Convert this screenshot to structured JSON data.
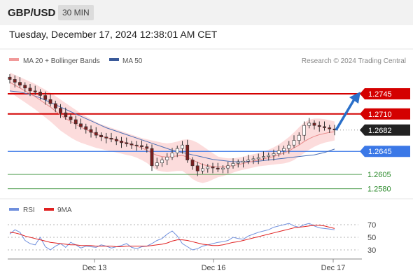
{
  "header": {
    "pair": "GBP/USD",
    "timeframe": "30 MIN",
    "datetime": "Tuesday, December 17, 2024 12:38:01 AM CET"
  },
  "legend": {
    "ma20": "MA 20 + Bollinger Bands",
    "ma50": "MA 50",
    "credit": "Research © 2024 Trading Central",
    "rsi": "RSI",
    "rsi_ma": "9MA"
  },
  "colors": {
    "candle_up": "#ffffff",
    "candle_down": "#7a1f1f",
    "ma20": "#e88a8a",
    "bands": "#fbd6d6",
    "ma50": "#4a6fb5",
    "resistance": "#d40000",
    "support": "#3b78e7",
    "target": "#2b8a2b",
    "current": "#222222",
    "arrow": "#2a6fc9",
    "rsi": "#6f8fdd",
    "rsi_ma": "#e02020"
  },
  "chart_data": [
    {
      "type": "candlestick",
      "title": "GBP/USD 30 MIN",
      "x_ticks": [
        "Dec 13",
        "Dec 16",
        "Dec 17"
      ],
      "ylim": [
        1.2565,
        1.279
      ],
      "levels": [
        {
          "value": 1.2745,
          "label": "1.2745",
          "kind": "resistance"
        },
        {
          "value": 1.271,
          "label": "1.2710",
          "kind": "resistance"
        },
        {
          "value": 1.2682,
          "label": "1.2682",
          "kind": "current"
        },
        {
          "value": 1.2645,
          "label": "1.2645",
          "kind": "support"
        },
        {
          "value": 1.2605,
          "label": "1.2605",
          "kind": "target"
        },
        {
          "value": 1.258,
          "label": "1.2580",
          "kind": "target"
        }
      ],
      "close": [
        1.277,
        1.2765,
        1.276,
        1.2755,
        1.275,
        1.2748,
        1.2742,
        1.2735,
        1.2728,
        1.272,
        1.2712,
        1.2705,
        1.27,
        1.2693,
        1.2688,
        1.2683,
        1.2678,
        1.2673,
        1.267,
        1.2668,
        1.2666,
        1.2663,
        1.266,
        1.2658,
        1.2656,
        1.2655,
        1.2653,
        1.265,
        1.262,
        1.2625,
        1.263,
        1.2635,
        1.2642,
        1.265,
        1.2656,
        1.263,
        1.262,
        1.2611,
        1.2615,
        1.2618,
        1.2616,
        1.2614,
        1.2616,
        1.262,
        1.2624,
        1.2626,
        1.2628,
        1.263,
        1.2632,
        1.2634,
        1.2636,
        1.2638,
        1.2641,
        1.2646,
        1.265,
        1.2656,
        1.2664,
        1.2673,
        1.269,
        1.2694,
        1.269,
        1.2688,
        1.2686,
        1.2684,
        1.2682
      ],
      "series": [
        {
          "name": "MA 20",
          "values": [
            1.2765,
            1.276,
            1.2755,
            1.275,
            1.2745,
            1.274,
            1.2734,
            1.2728,
            1.2722,
            1.2715,
            1.2708,
            1.2702,
            1.2697,
            1.2692,
            1.2687,
            1.2683,
            1.2679,
            1.2675,
            1.2672,
            1.2669,
            1.2667,
            1.2665,
            1.2662,
            1.266,
            1.2657,
            1.2654,
            1.2651,
            1.2647,
            1.2642,
            1.2638,
            1.2636,
            1.2635,
            1.2636,
            1.2637,
            1.2638,
            1.2635,
            1.263,
            1.2626,
            1.2622,
            1.262,
            1.2619,
            1.2618,
            1.2618,
            1.2619,
            1.262,
            1.2622,
            1.2624,
            1.2626,
            1.2628,
            1.263,
            1.2632,
            1.2634,
            1.2636,
            1.2639,
            1.2642,
            1.2646,
            1.2651,
            1.2656,
            1.2662,
            1.2667,
            1.2671,
            1.2674,
            1.2676,
            1.2678,
            1.2679
          ]
        },
        {
          "name": "MA 50",
          "values": [
            1.275,
            1.2749,
            1.2748,
            1.2746,
            1.2744,
            1.2741,
            1.2738,
            1.2734,
            1.273,
            1.2726,
            1.2722,
            1.2718,
            1.2714,
            1.271,
            1.2706,
            1.2702,
            1.2698,
            1.2694,
            1.269,
            1.2686,
            1.2683,
            1.268,
            1.2677,
            1.2674,
            1.2671,
            1.2668,
            1.2665,
            1.2662,
            1.2659,
            1.2656,
            1.2653,
            1.265,
            1.2647,
            1.2645,
            1.2643,
            1.2641,
            1.2639,
            1.2637,
            1.2635,
            1.2633,
            1.2631,
            1.263,
            1.2629,
            1.2628,
            1.2627,
            1.2627,
            1.2627,
            1.2627,
            1.2627,
            1.2628,
            1.2629,
            1.263,
            1.2631,
            1.2632,
            1.2633,
            1.2634,
            1.2635,
            1.2636,
            1.2637,
            1.2638,
            1.2639,
            1.2641,
            1.2643,
            1.2646,
            1.2649
          ]
        },
        {
          "name": "Bollinger Upper",
          "values": [
            1.2782,
            1.2778,
            1.2774,
            1.277,
            1.2766,
            1.2762,
            1.2757,
            1.2752,
            1.2747,
            1.2741,
            1.2735,
            1.2729,
            1.2723,
            1.2717,
            1.2711,
            1.2706,
            1.2701,
            1.2696,
            1.2692,
            1.2689,
            1.2686,
            1.2683,
            1.268,
            1.2677,
            1.2674,
            1.2671,
            1.2668,
            1.2666,
            1.2664,
            1.2662,
            1.266,
            1.2659,
            1.266,
            1.2662,
            1.2665,
            1.2666,
            1.2664,
            1.266,
            1.2654,
            1.2648,
            1.2642,
            1.2636,
            1.2634,
            1.2633,
            1.2633,
            1.2634,
            1.2636,
            1.2638,
            1.264,
            1.2642,
            1.2645,
            1.2648,
            1.2652,
            1.2657,
            1.2663,
            1.267,
            1.2678,
            1.2687,
            1.2695,
            1.27,
            1.2702,
            1.2702,
            1.2701,
            1.2699,
            1.2697
          ]
        },
        {
          "name": "Bollinger Lower",
          "values": [
            1.2748,
            1.2742,
            1.2736,
            1.273,
            1.2724,
            1.2718,
            1.2711,
            1.2704,
            1.2697,
            1.2689,
            1.2681,
            1.2675,
            1.2669,
            1.2664,
            1.266,
            1.2657,
            1.2654,
            1.2651,
            1.2649,
            1.2647,
            1.2645,
            1.2643,
            1.2641,
            1.2639,
            1.2637,
            1.2634,
            1.263,
            1.2625,
            1.2618,
            1.2612,
            1.261,
            1.2609,
            1.261,
            1.2611,
            1.2611,
            1.2605,
            1.2597,
            1.2592,
            1.259,
            1.2592,
            1.2596,
            1.26,
            1.2602,
            1.2605,
            1.2608,
            1.2611,
            1.2613,
            1.2615,
            1.2617,
            1.2619,
            1.262,
            1.2621,
            1.2622,
            1.2623,
            1.2624,
            1.2626,
            1.263,
            1.2636,
            1.2642,
            1.2648,
            1.2653,
            1.2657,
            1.266,
            1.2662,
            1.2664
          ]
        }
      ]
    },
    {
      "type": "line",
      "title": "RSI",
      "ylim": [
        20,
        80
      ],
      "y_ticks": [
        70,
        50,
        30
      ],
      "series": [
        {
          "name": "RSI",
          "values": [
            55,
            62,
            58,
            45,
            40,
            38,
            50,
            35,
            30,
            36,
            40,
            34,
            42,
            38,
            33,
            36,
            35,
            34,
            38,
            36,
            33,
            35,
            37,
            40,
            34,
            32,
            35,
            36,
            40,
            45,
            48,
            55,
            60,
            52,
            40,
            35,
            30,
            32,
            36,
            38,
            40,
            42,
            43,
            45,
            50,
            48,
            47,
            52,
            55,
            58,
            60,
            62,
            66,
            68,
            70,
            72,
            68,
            66,
            70,
            72,
            68,
            65,
            64,
            63,
            62
          ]
        },
        {
          "name": "9MA",
          "values": [
            58,
            57,
            55,
            52,
            50,
            48,
            46,
            44,
            42,
            41,
            40,
            39,
            38,
            38,
            37,
            37,
            37,
            36,
            36,
            36,
            36,
            35,
            35,
            36,
            36,
            36,
            36,
            36,
            37,
            38,
            39,
            41,
            44,
            46,
            46,
            45,
            43,
            41,
            39,
            38,
            37,
            37,
            38,
            40,
            42,
            43,
            45,
            47,
            49,
            51,
            53,
            55,
            57,
            59,
            61,
            63,
            65,
            66,
            67,
            68,
            69,
            69,
            68,
            66,
            64
          ]
        }
      ]
    }
  ]
}
